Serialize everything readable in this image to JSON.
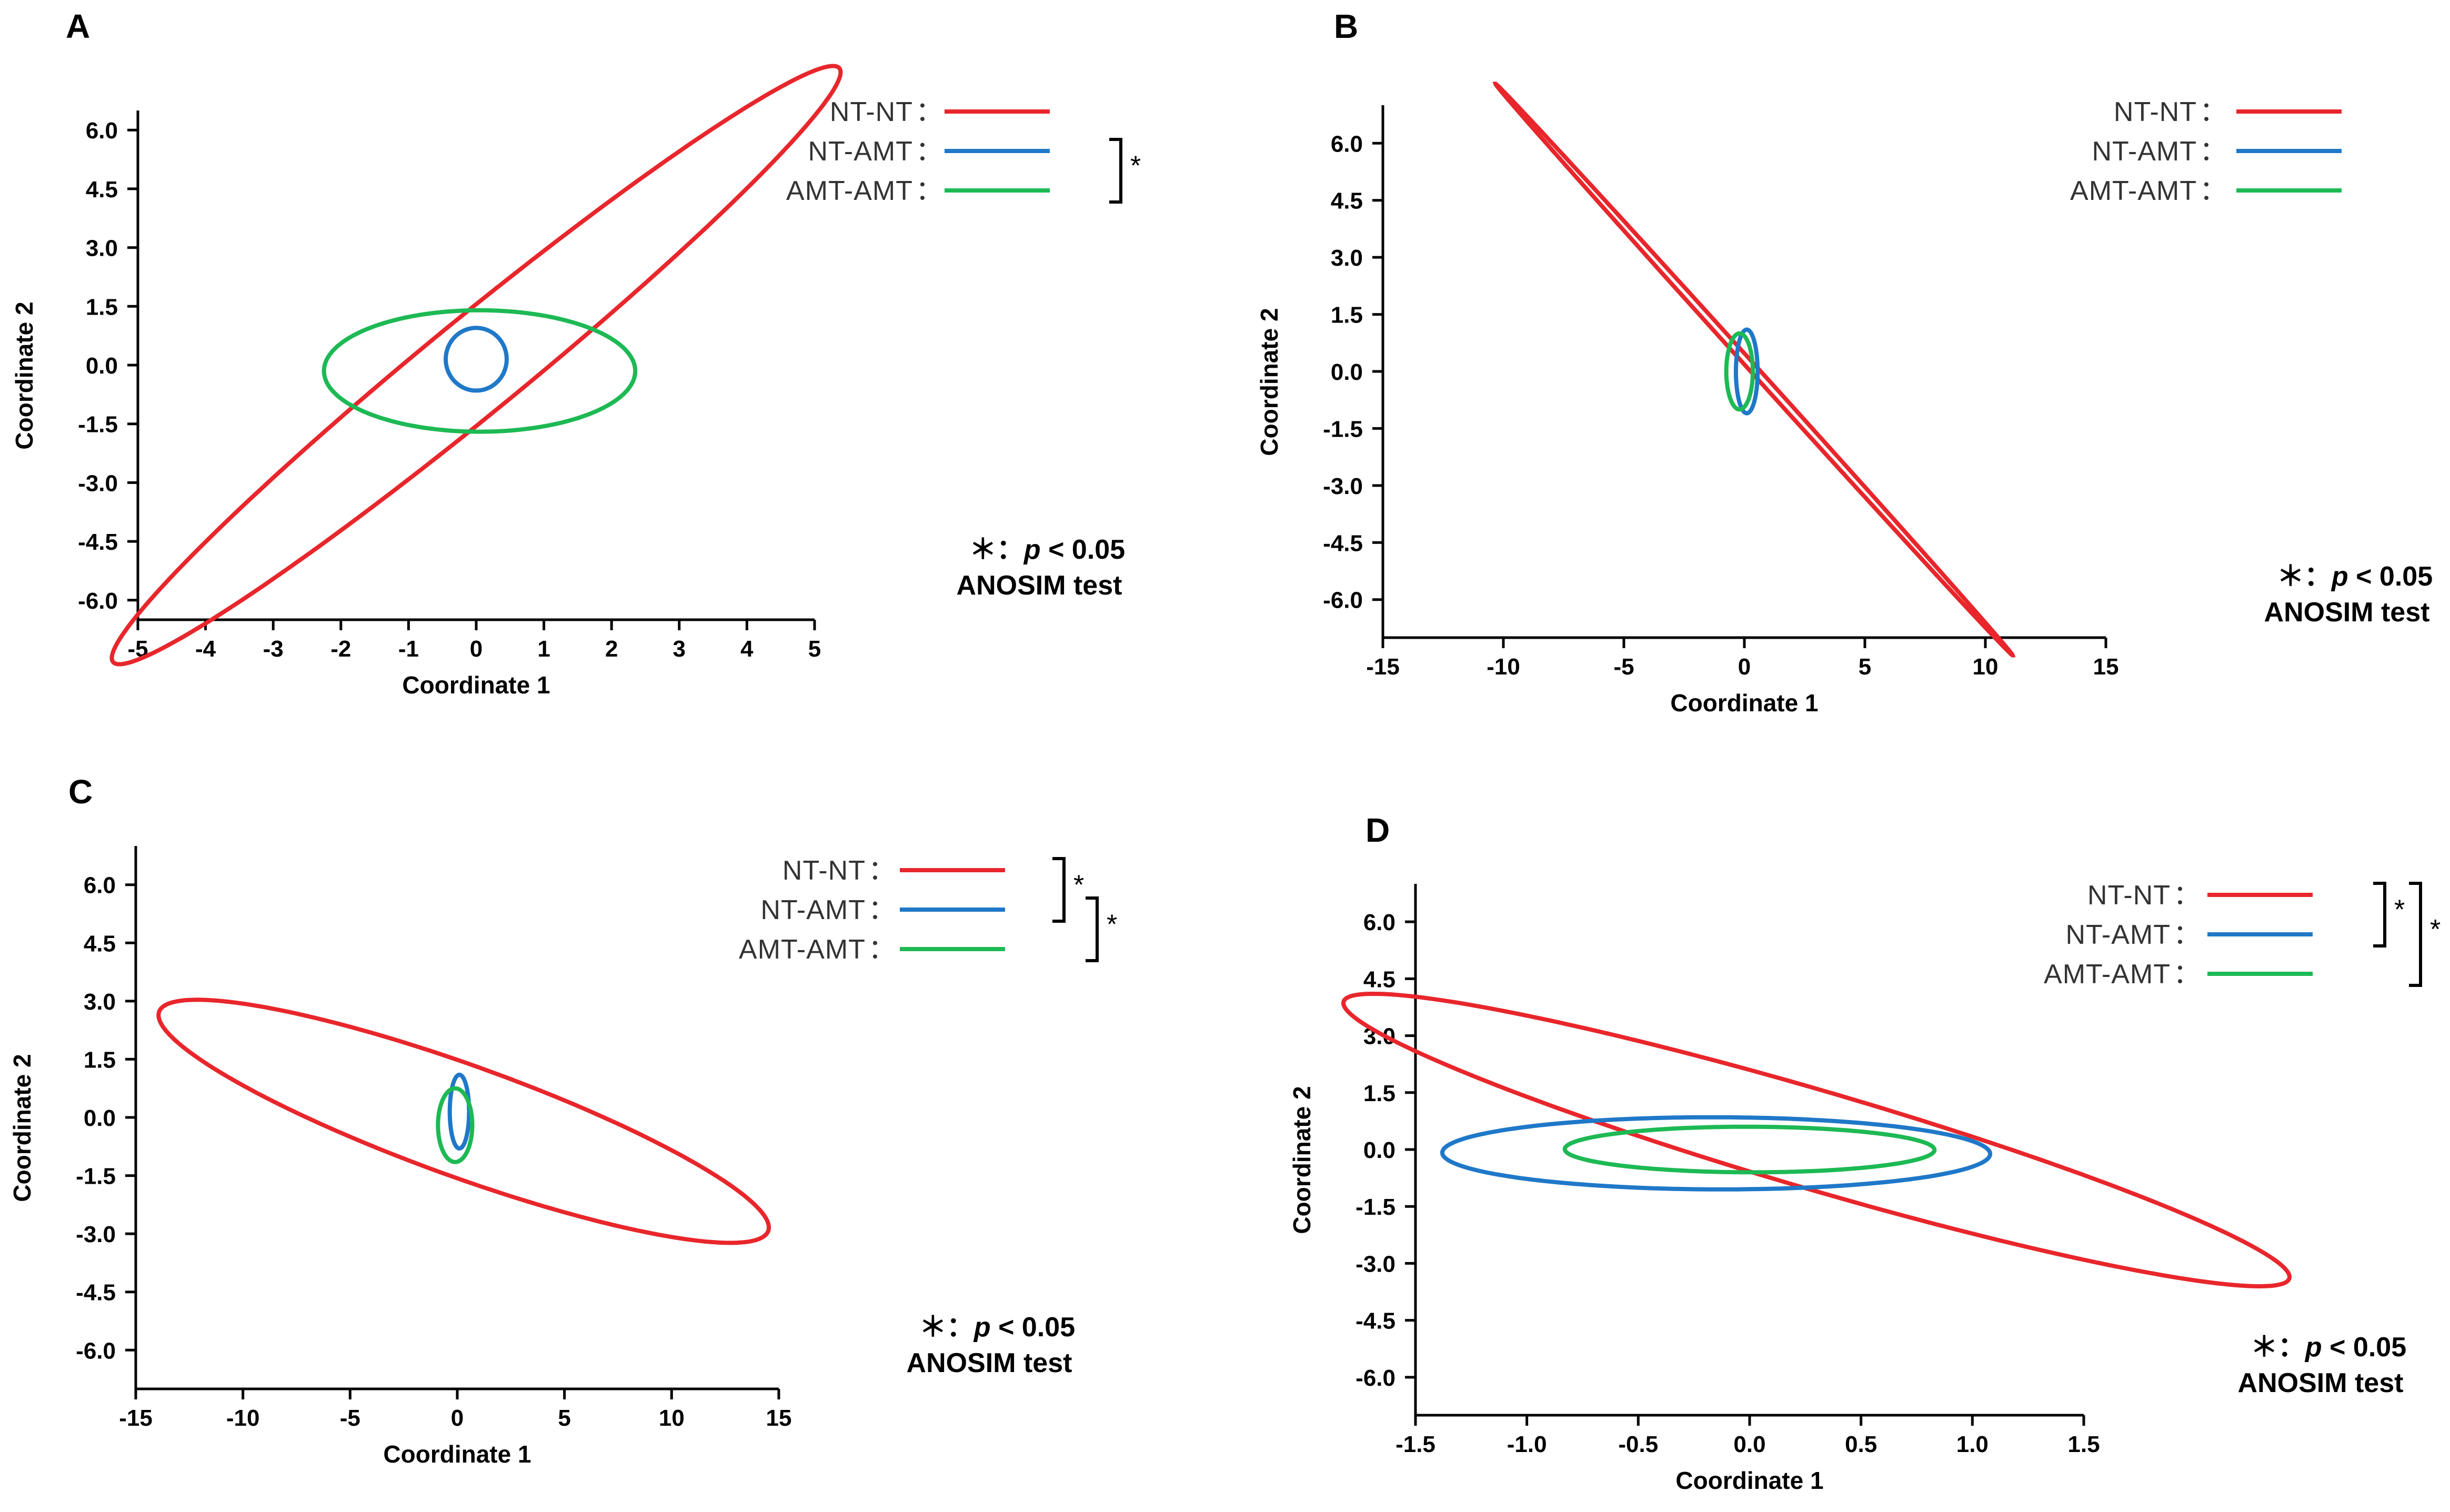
{
  "colors": {
    "NT-NT": "#e8262b",
    "NT-AMT": "#1f78c8",
    "AMT-AMT": "#1db954"
  },
  "legend_colon": "：",
  "sig_symbol": "*",
  "note": {
    "star": "＊：",
    "p": "p",
    "lt": " < 0.05",
    "test": "ANOSIM test"
  },
  "chart_data": [
    {
      "panel": "A",
      "type": "scatter",
      "subtype": "confidence-ellipse",
      "xlabel": "Coordinate 1",
      "ylabel": "Coordinate 2",
      "xlim": [
        -5,
        5
      ],
      "ylim": [
        -6.5,
        6.5
      ],
      "xticks": [
        -5,
        -4,
        -3,
        -2,
        -1,
        0,
        1,
        2,
        3,
        4,
        5
      ],
      "xtick_labels": [
        "-5",
        "-4",
        "-3",
        "-2",
        "-1",
        "0",
        "1",
        "2",
        "3",
        "4",
        "5"
      ],
      "yticks": [
        6,
        4.5,
        3,
        1.5,
        0,
        -1.5,
        -3,
        -4.5,
        -6
      ],
      "ytick_labels": [
        "6.0",
        "4.5",
        "3.0",
        "1.5",
        "0.0",
        "-1.5",
        "-3.0",
        "-4.5",
        "-6.0"
      ],
      "series": [
        {
          "name": "NT-NT",
          "center": [
            0,
            0
          ],
          "semi_major": 9.3,
          "semi_minor": 0.9,
          "angle_deg": 55
        },
        {
          "name": "NT-AMT",
          "center": [
            0,
            0.15
          ],
          "semi_major": 0.8,
          "semi_minor": 0.45,
          "angle_deg": 90
        },
        {
          "name": "AMT-AMT",
          "center": [
            0.05,
            -0.15
          ],
          "semi_major": 2.3,
          "semi_minor": 1.55,
          "angle_deg": 0
        }
      ],
      "significance": [
        [
          "NT-AMT",
          "AMT-AMT"
        ]
      ]
    },
    {
      "panel": "B",
      "type": "scatter",
      "subtype": "confidence-ellipse",
      "xlabel": "Coordinate 1",
      "ylabel": "Coordinate 2",
      "xlim": [
        -15,
        15
      ],
      "ylim": [
        -7,
        7
      ],
      "xticks": [
        -15,
        -10,
        -5,
        0,
        5,
        10,
        15
      ],
      "xtick_labels": [
        "-15",
        "-10",
        "-5",
        "0",
        "5",
        "10",
        "15"
      ],
      "yticks": [
        6,
        4.5,
        3,
        1.5,
        0,
        -1.5,
        -3,
        -4.5,
        -6
      ],
      "ytick_labels": [
        "6.0",
        "4.5",
        "3.0",
        "1.5",
        "0.0",
        "-1.5",
        "-3.0",
        "-4.5",
        "-6.0"
      ],
      "series": [
        {
          "name": "NT-NT",
          "center": [
            0.4,
            0.05
          ],
          "semi_major": 13.1,
          "semi_minor": 0.12,
          "angle_deg": -35
        },
        {
          "name": "NT-AMT",
          "center": [
            0.1,
            0
          ],
          "semi_major": 1.1,
          "semi_minor": 0.45,
          "angle_deg": 90
        },
        {
          "name": "AMT-AMT",
          "center": [
            -0.2,
            0
          ],
          "semi_major": 1.0,
          "semi_minor": 0.55,
          "angle_deg": 90
        }
      ],
      "significance": []
    },
    {
      "panel": "C",
      "type": "scatter",
      "subtype": "confidence-ellipse",
      "xlabel": "Coordinate 1",
      "ylabel": "Coordinate 2",
      "xlim": [
        -15,
        15
      ],
      "ylim": [
        -7,
        7
      ],
      "xticks": [
        -15,
        -10,
        -5,
        0,
        5,
        10,
        15
      ],
      "xtick_labels": [
        "-15",
        "-10",
        "-5",
        "0",
        "5",
        "10",
        "15"
      ],
      "yticks": [
        6,
        4.5,
        3,
        1.5,
        0,
        -1.5,
        -3,
        -4.5,
        -6
      ],
      "ytick_labels": [
        "6.0",
        "4.5",
        "3.0",
        "1.5",
        "0.0",
        "-1.5",
        "-3.0",
        "-4.5",
        "-6.0"
      ],
      "series": [
        {
          "name": "NT-NT",
          "center": [
            0.3,
            -0.1
          ],
          "semi_major": 14.5,
          "semi_minor": 1.5,
          "angle_deg": -11
        },
        {
          "name": "NT-AMT",
          "center": [
            0.1,
            0.15
          ],
          "semi_major": 0.95,
          "semi_minor": 0.45,
          "angle_deg": 90
        },
        {
          "name": "AMT-AMT",
          "center": [
            -0.1,
            -0.2
          ],
          "semi_major": 0.95,
          "semi_minor": 0.8,
          "angle_deg": 90
        }
      ],
      "significance": [
        [
          "NT-NT",
          "NT-AMT"
        ],
        [
          "NT-AMT",
          "AMT-AMT"
        ]
      ]
    },
    {
      "panel": "D",
      "type": "scatter",
      "subtype": "confidence-ellipse",
      "xlabel": "Coordinate 1",
      "ylabel": "Coordinate 2",
      "xlim": [
        -1.5,
        1.5
      ],
      "ylim": [
        -7,
        7
      ],
      "xticks": [
        -1.5,
        -1.0,
        -0.5,
        0,
        0.5,
        1.0,
        1.5
      ],
      "xtick_labels": [
        "-1.5",
        "-1.0",
        "-0.5",
        "0.0",
        "0.5",
        "1.0",
        "1.5"
      ],
      "yticks": [
        6,
        4.5,
        3,
        1.5,
        0,
        -1.5,
        -3,
        -4.5,
        -6
      ],
      "ytick_labels": [
        "6.0",
        "4.5",
        "3.0",
        "1.5",
        "0.0",
        "-1.5",
        "-3.0",
        "-4.5",
        "-6.0"
      ],
      "series": [
        {
          "name": "NT-NT",
          "center": [
            0.3,
            0.25
          ],
          "semi_major": 4.35,
          "semi_minor": 0.66,
          "angle_deg": -62
        },
        {
          "name": "NT-AMT",
          "center": [
            -0.15,
            -0.1
          ],
          "semi_major": 1.23,
          "semi_minor": 0.95,
          "angle_deg": -2
        },
        {
          "name": "AMT-AMT",
          "center": [
            0,
            0
          ],
          "semi_major": 0.83,
          "semi_minor": 0.6,
          "angle_deg": -1.5
        }
      ],
      "significance": [
        [
          "NT-NT",
          "NT-AMT"
        ],
        [
          "NT-NT",
          "AMT-AMT"
        ]
      ]
    }
  ]
}
